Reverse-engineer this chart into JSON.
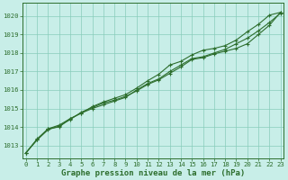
{
  "title": "Graphe pression niveau de la mer (hPa)",
  "bg_color": "#c8eee8",
  "grid_color": "#88ccbb",
  "line_color": "#2d6e2d",
  "marker_color": "#2d6e2d",
  "xlim": [
    -0.3,
    23.3
  ],
  "ylim": [
    1012.3,
    1020.7
  ],
  "xticks": [
    0,
    1,
    2,
    3,
    4,
    5,
    6,
    7,
    8,
    9,
    10,
    11,
    12,
    13,
    14,
    15,
    16,
    17,
    18,
    19,
    20,
    21,
    22,
    23
  ],
  "yticks": [
    1013,
    1014,
    1015,
    1016,
    1017,
    1018,
    1019,
    1020
  ],
  "line1_x": [
    0,
    1,
    2,
    3,
    4,
    5,
    6,
    7,
    8,
    9,
    10,
    11,
    12,
    13,
    14,
    15,
    16,
    17,
    18,
    19,
    20,
    21,
    22,
    23
  ],
  "line1_y": [
    1012.6,
    1013.3,
    1013.9,
    1014.0,
    1014.45,
    1014.75,
    1015.1,
    1015.35,
    1015.55,
    1015.75,
    1016.1,
    1016.5,
    1016.85,
    1017.35,
    1017.55,
    1017.9,
    1018.15,
    1018.25,
    1018.4,
    1018.7,
    1019.15,
    1019.55,
    1020.05,
    1020.2
  ],
  "line2_x": [
    0,
    1,
    2,
    3,
    4,
    5,
    6,
    7,
    8,
    9,
    10,
    11,
    12,
    13,
    14,
    15,
    16,
    17,
    18,
    19,
    20,
    21,
    22,
    23
  ],
  "line2_y": [
    1012.6,
    1013.3,
    1013.85,
    1014.05,
    1014.4,
    1014.8,
    1015.05,
    1015.3,
    1015.45,
    1015.65,
    1015.95,
    1016.3,
    1016.55,
    1016.9,
    1017.25,
    1017.65,
    1017.75,
    1017.95,
    1018.1,
    1018.25,
    1018.5,
    1019.0,
    1019.5,
    1020.2
  ],
  "line3_x": [
    0,
    1,
    2,
    3,
    4,
    5,
    6,
    7,
    8,
    9,
    10,
    11,
    12,
    13,
    14,
    15,
    16,
    17,
    18,
    19,
    20,
    21,
    22,
    23
  ],
  "line3_y": [
    1012.6,
    1013.35,
    1013.9,
    1014.1,
    1014.45,
    1014.75,
    1015.0,
    1015.2,
    1015.4,
    1015.6,
    1016.0,
    1016.35,
    1016.6,
    1017.0,
    1017.35,
    1017.7,
    1017.8,
    1018.0,
    1018.2,
    1018.5,
    1018.8,
    1019.2,
    1019.65,
    1020.15
  ],
  "tick_fontsize": 5.2,
  "xlabel_fontsize": 6.5,
  "marker_size": 2.0,
  "linewidth": 0.8
}
